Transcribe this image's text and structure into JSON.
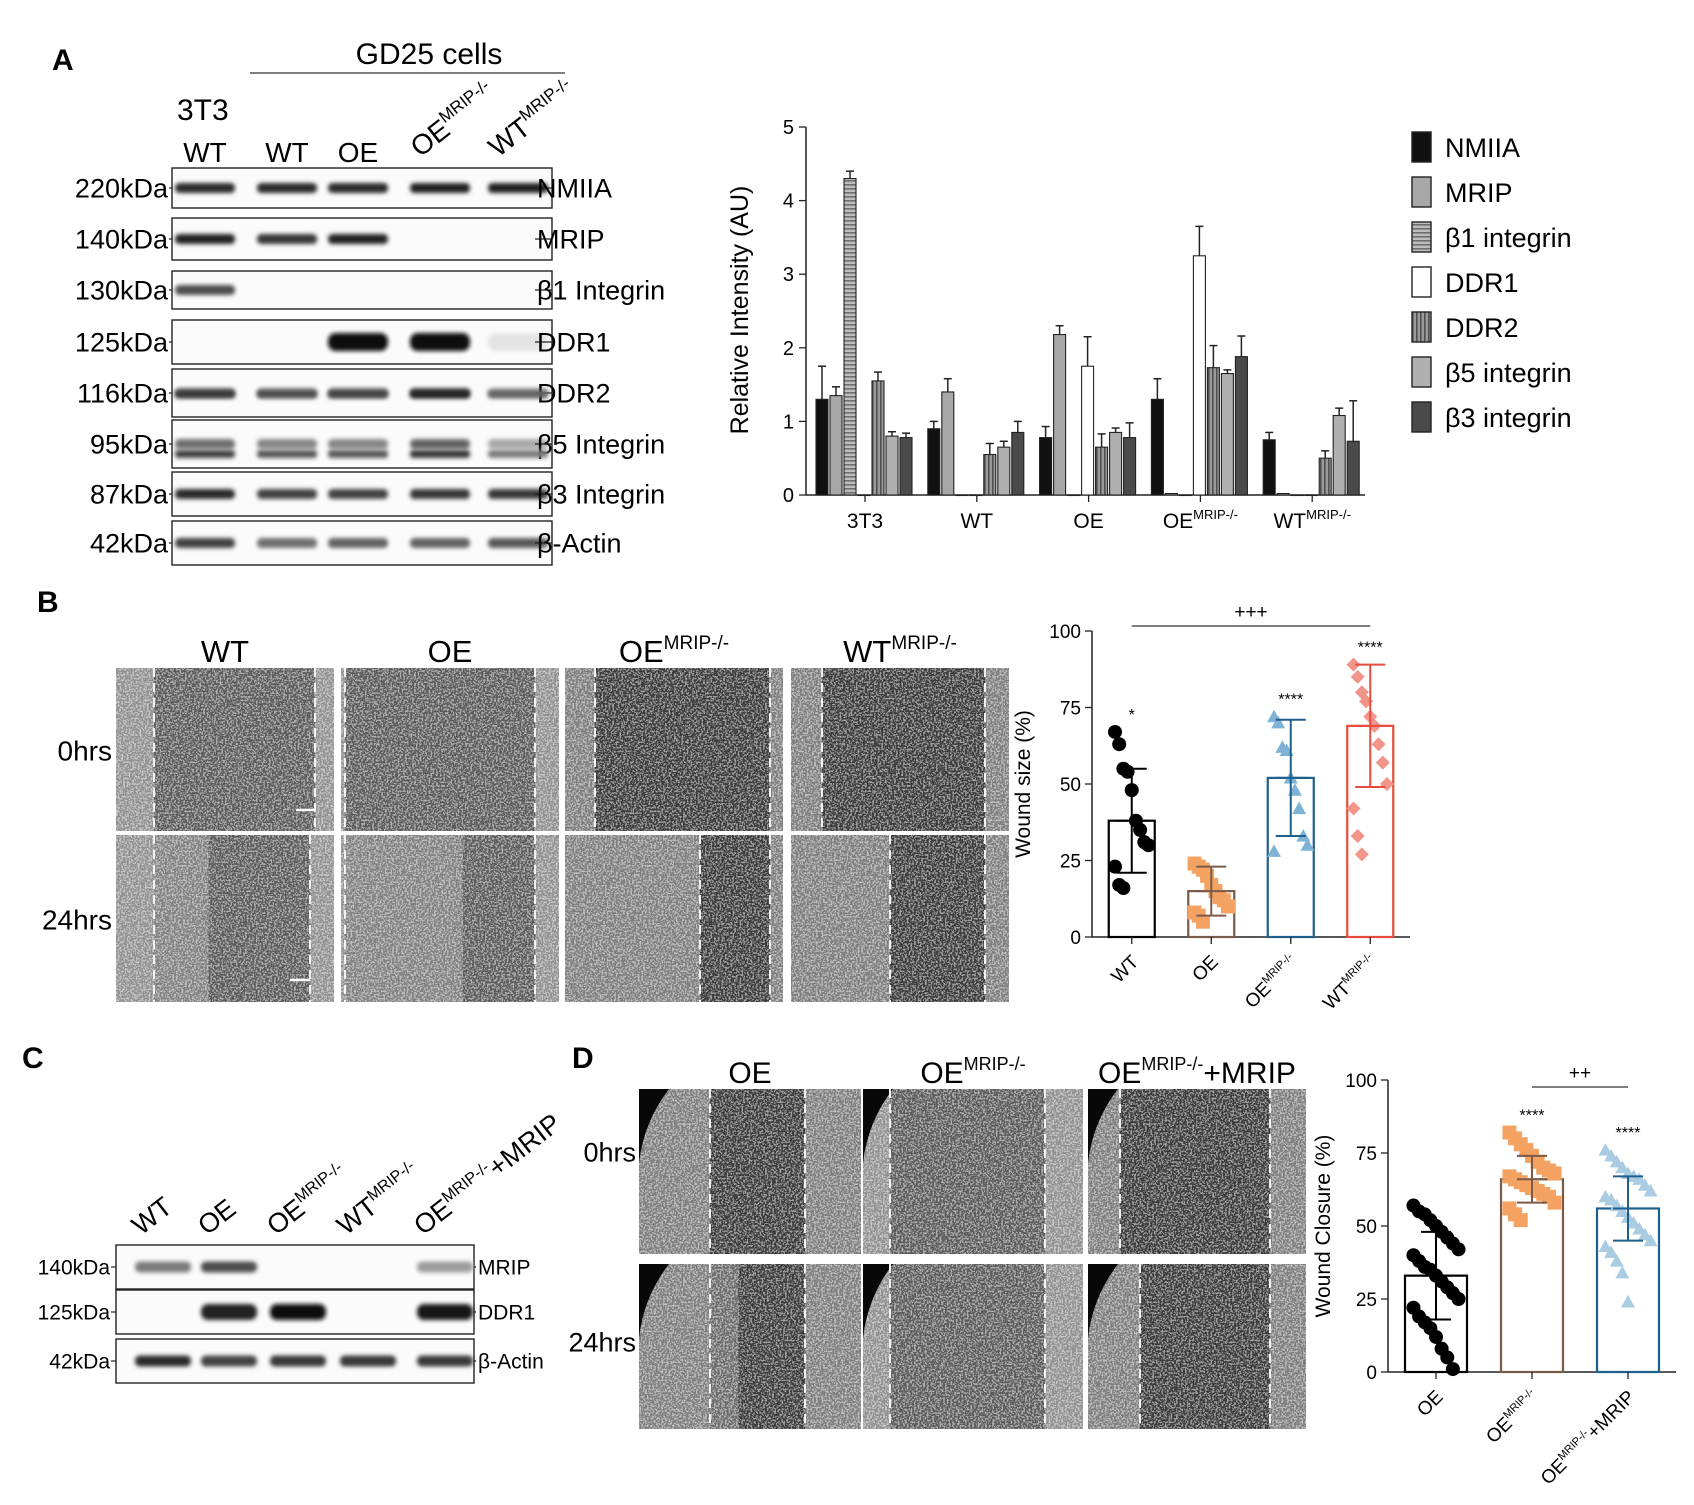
{
  "panels": {
    "A": {
      "letter": "A",
      "group_label": "GD25 cells",
      "ref_label": "3T3",
      "lanes": [
        {
          "base": "WT",
          "sup": ""
        },
        {
          "base": "WT",
          "sup": ""
        },
        {
          "base": "OE",
          "sup": ""
        },
        {
          "base": "OE",
          "sup": "MRIP-/-"
        },
        {
          "base": "WT",
          "sup": "MRIP-/-"
        }
      ],
      "blots": [
        {
          "size": "220kDa",
          "protein": "NMIIA",
          "bands": [
            0.85,
            0.85,
            0.85,
            0.9,
            0.9
          ]
        },
        {
          "size": "140kDa",
          "protein": "MRIP",
          "bands": [
            0.9,
            0.8,
            0.9,
            0.0,
            0.0
          ]
        },
        {
          "size": "130kDa",
          "protein": "β1 Integrin",
          "bands": [
            0.7,
            0.0,
            0.0,
            0.0,
            0.0
          ]
        },
        {
          "size": "125kDa",
          "protein": "DDR1",
          "bands": [
            0.0,
            0.0,
            1.0,
            1.0,
            0.03
          ]
        },
        {
          "size": "116kDa",
          "protein": "DDR2",
          "bands": [
            0.45,
            0.35,
            0.4,
            0.55,
            0.25
          ]
        },
        {
          "size": "95kDa",
          "protein": "β5 Integrin",
          "bands": [
            0.55,
            0.45,
            0.45,
            0.6,
            0.3
          ]
        },
        {
          "size": "87kDa",
          "protein": "β3 Integrin",
          "bands": [
            0.85,
            0.75,
            0.75,
            0.8,
            0.8
          ]
        },
        {
          "size": "42kDa",
          "protein": "β-Actin",
          "bands": [
            0.75,
            0.55,
            0.6,
            0.6,
            0.65
          ]
        }
      ],
      "chart_data": {
        "type": "bar",
        "ylabel": "Relative Intensity (AU)",
        "ylim": [
          0,
          5
        ],
        "yticks": [
          "0",
          "1",
          "2",
          "3",
          "4",
          "5"
        ],
        "categories": [
          {
            "base": "3T3",
            "sup": ""
          },
          {
            "base": "WT",
            "sup": ""
          },
          {
            "base": "OE",
            "sup": ""
          },
          {
            "base": "OE",
            "sup": "MRIP-/-"
          },
          {
            "base": "WT",
            "sup": "MRIP-/-"
          }
        ],
        "legend_position": "right",
        "series": [
          {
            "name": "NMIIA",
            "color": "#111111",
            "values": [
              1.3,
              0.9,
              0.78,
              1.3,
              0.75
            ],
            "errors": [
              0.45,
              0.1,
              0.15,
              0.28,
              0.1
            ]
          },
          {
            "name": "MRIP",
            "color": "#a8a8a8",
            "values": [
              1.35,
              1.4,
              2.18,
              0.02,
              0.02
            ],
            "errors": [
              0.12,
              0.18,
              0.12,
              0.0,
              0.0
            ]
          },
          {
            "name": "β1 integrin",
            "color": "#8f8f8f",
            "pattern": "hstripe",
            "values": [
              4.3,
              0.0,
              0.0,
              0.0,
              0.0
            ],
            "errors": [
              0.1,
              0,
              0,
              0,
              0
            ]
          },
          {
            "name": "DDR1",
            "color": "#ffffff",
            "values": [
              0.0,
              0.0,
              1.75,
              3.25,
              0.0
            ],
            "errors": [
              0,
              0,
              0.4,
              0.4,
              0
            ]
          },
          {
            "name": "DDR2",
            "color": "#7a7a7a",
            "pattern": "vstripe",
            "values": [
              1.55,
              0.55,
              0.65,
              1.73,
              0.5
            ],
            "errors": [
              0.12,
              0.15,
              0.18,
              0.3,
              0.1
            ]
          },
          {
            "name": "β5 integrin",
            "color": "#b0b0b0",
            "values": [
              0.8,
              0.65,
              0.85,
              1.65,
              1.08
            ],
            "errors": [
              0.06,
              0.08,
              0.06,
              0.05,
              0.1
            ]
          },
          {
            "name": "β3 integrin",
            "color": "#4a4a4a",
            "values": [
              0.78,
              0.85,
              0.78,
              1.88,
              0.73
            ],
            "errors": [
              0.06,
              0.15,
              0.2,
              0.28,
              0.55
            ]
          }
        ]
      }
    },
    "B": {
      "letter": "B",
      "columns": [
        {
          "base": "WT",
          "sup": ""
        },
        {
          "base": "OE",
          "sup": ""
        },
        {
          "base": "OE",
          "sup": "MRIP-/-"
        },
        {
          "base": "WT",
          "sup": "MRIP-/-"
        }
      ],
      "rows": [
        "0hrs",
        "24hrs"
      ],
      "chart_data": {
        "type": "scatter",
        "ylabel": "Wound size (%)",
        "ylim": [
          0,
          100
        ],
        "yticks": [
          "0",
          "25",
          "50",
          "75",
          "100"
        ],
        "categories": [
          {
            "base": "WT",
            "sup": ""
          },
          {
            "base": "OE",
            "sup": ""
          },
          {
            "base": "OE",
            "sup": "MRIP-/-"
          },
          {
            "base": "WT",
            "sup": "MRIP-/-"
          }
        ],
        "series": [
          {
            "name": "WT",
            "color": "#000000",
            "marker": "circle",
            "mean": 38,
            "sd": 17,
            "significance": "*",
            "points": [
              67,
              63,
              55,
              54,
              48,
              38,
              35,
              31,
              30,
              23,
              17,
              16
            ]
          },
          {
            "name": "OE",
            "color": "#f4a261",
            "marker": "square",
            "mean": 15,
            "sd": 8,
            "significance": "",
            "points": [
              24,
              23,
              22,
              20,
              17,
              15,
              13,
              12,
              10,
              8,
              7,
              5
            ]
          },
          {
            "name": "OE MRIP-/-",
            "color": "#7fb3d5",
            "edge": "#1f5f8b",
            "marker": "triangle",
            "mean": 52,
            "sd": 19,
            "significance": "****",
            "points": [
              72,
              70,
              62,
              61,
              52,
              48,
              42,
              33,
              30,
              28
            ]
          },
          {
            "name": "WT MRIP-/-",
            "color": "#f1948a",
            "edge": "#e74c3c",
            "marker": "diamond",
            "mean": 69,
            "sd": 20,
            "significance": "****",
            "points": [
              89,
              85,
              80,
              77,
              72,
              69,
              63,
              57,
              50,
              42,
              33,
              27
            ]
          }
        ],
        "bracket": {
          "from": 0,
          "to": 3,
          "label": "+++"
        }
      }
    },
    "C": {
      "letter": "C",
      "lanes": [
        {
          "base": "WT",
          "sup": "",
          "suffix": ""
        },
        {
          "base": "OE",
          "sup": "",
          "suffix": ""
        },
        {
          "base": "OE",
          "sup": "MRIP-/-",
          "suffix": ""
        },
        {
          "base": "WT",
          "sup": "MRIP-/-",
          "suffix": ""
        },
        {
          "base": "OE",
          "sup": "MRIP-/-",
          "suffix": "+MRIP"
        }
      ],
      "blots": [
        {
          "size": "140kDa",
          "protein": "MRIP",
          "bands": [
            0.5,
            0.7,
            0.0,
            0.0,
            0.35
          ]
        },
        {
          "size": "125kDa",
          "protein": "DDR1",
          "bands": [
            0.0,
            0.9,
            1.0,
            0.0,
            0.95
          ]
        },
        {
          "size": "42kDa",
          "protein": "β-Actin",
          "bands": [
            0.85,
            0.75,
            0.8,
            0.8,
            0.8
          ]
        }
      ]
    },
    "D": {
      "letter": "D",
      "columns": [
        {
          "base": "OE",
          "sup": "",
          "suffix": ""
        },
        {
          "base": "OE",
          "sup": "MRIP-/-",
          "suffix": ""
        },
        {
          "base": "OE",
          "sup": "MRIP-/-",
          "suffix": "+MRIP"
        }
      ],
      "rows": [
        "0hrs",
        "24hrs"
      ],
      "chart_data": {
        "type": "scatter",
        "ylabel": "Wound Closure (%)",
        "ylim": [
          0,
          100
        ],
        "yticks": [
          "0",
          "25",
          "50",
          "75",
          "100"
        ],
        "categories": [
          {
            "base": "OE",
            "sup": "",
            "suffix": ""
          },
          {
            "base": "OE",
            "sup": "MRIP-/-",
            "suffix": ""
          },
          {
            "base": "OE",
            "sup": "MRIP-/-",
            "suffix": "+MRIP"
          }
        ],
        "series": [
          {
            "name": "OE",
            "color": "#000000",
            "marker": "circle",
            "mean": 33,
            "sd": 15,
            "significance": "",
            "points": [
              57,
              55,
              54,
              52,
              50,
              48,
              46,
              44,
              42,
              40,
              38,
              36,
              35,
              33,
              31,
              29,
              27,
              25,
              22,
              19,
              17,
              15,
              12,
              8,
              5,
              1
            ]
          },
          {
            "name": "OE MRIP-/-",
            "color": "#f4a261",
            "marker": "square",
            "mean": 66,
            "sd": 8,
            "significance": "****",
            "points": [
              82,
              80,
              78,
              76,
              74,
              72,
              70,
              69,
              68,
              67,
              66,
              65,
              64,
              63,
              62,
              61,
              60,
              58,
              56,
              54,
              52
            ]
          },
          {
            "name": "OE MRIP-/- +MRIP",
            "color": "#a9cce3",
            "edge": "#1f5f8b",
            "marker": "triangle",
            "mean": 56,
            "sd": 11,
            "significance": "****",
            "points": [
              76,
              74,
              72,
              70,
              68,
              67,
              66,
              64,
              62,
              60,
              59,
              57,
              55,
              53,
              51,
              49,
              47,
              45,
              43,
              41,
              38,
              34,
              24
            ]
          }
        ],
        "bracket": {
          "from": 1,
          "to": 2,
          "label": "++"
        }
      }
    }
  }
}
